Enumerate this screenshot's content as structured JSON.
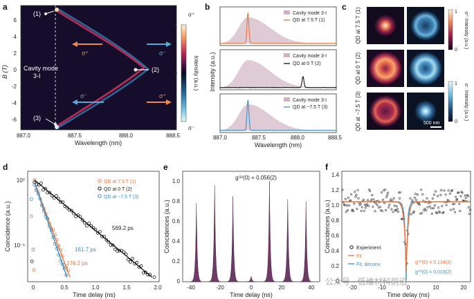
{
  "panel_labels": [
    "a",
    "b",
    "c",
    "d",
    "e",
    "f"
  ],
  "panel_a": {
    "xlabel": "Wavelength (nm)",
    "ylabel": "B (T)",
    "xticks": [
      "887.0",
      "887.5",
      "888.0",
      "888.5"
    ],
    "yticks": [
      "6",
      "4",
      "2",
      "0",
      "-2",
      "-4",
      "-6"
    ],
    "cavity_label_1": "Cavity mode",
    "cavity_label_2": "3-I",
    "points": [
      "(1)",
      "(2)",
      "(3)"
    ],
    "sigma_plus": "σ⁺",
    "sigma_minus": "σ⁻",
    "colorbar_top": "1",
    "colorbar_mid": "0",
    "colorbar_bot": "1",
    "colorbar_label": "Intensity (a.u.)",
    "colorbar_top_sym": "σ⁺",
    "colorbar_bot_sym": "σ⁻"
  },
  "panel_b": {
    "xlabel": "Wavelength (nm)",
    "ylabel": "Intensity (a.u.)",
    "xticks": [
      "887.0",
      "887.5",
      "888.0",
      "888.5"
    ],
    "legends": [
      {
        "cavity": "Cavity mode 3-I",
        "qd": "QD at 7.5 T (1)",
        "color": "#e8743b"
      },
      {
        "cavity": "Cavity mode 3-I",
        "qd": "QD at 0 T (2)",
        "color": "#111111"
      },
      {
        "cavity": "Cavity mode 3-I",
        "qd": "QD at −7.5 T (3)",
        "color": "#3a8fc4"
      }
    ]
  },
  "panel_c": {
    "row_labels": [
      "QD at 7.5 T (1)",
      "QD at 0 T (2)",
      "QD at −7.5 T (3)"
    ],
    "scalebar": "500 nm",
    "cb1_top": "1",
    "cb1_bot": "0",
    "cb1_label": "σ⁺ Intensity (a.u.)",
    "cb2_top": "1",
    "cb2_bot": "0",
    "cb2_label": "σ⁻ Intensity (a.u.)"
  },
  "panel_d": {
    "xlabel": "Time delay (ns)",
    "ylabel": "Coincidence (a.u.)",
    "xticks": [
      "0",
      "0.5",
      "1.0",
      "1.5",
      "2.0"
    ],
    "yticks": [
      "10⁰",
      "10⁻¹"
    ],
    "legend": [
      {
        "label": "QD at 7.5 T (1)",
        "color": "#e8743b"
      },
      {
        "label": "QD at 0 T (2)",
        "color": "#111111"
      },
      {
        "label": "QD at −7.5 T (3)",
        "color": "#3a8fc4"
      }
    ],
    "annotations": [
      {
        "text": "569.2 ps",
        "color": "#111111"
      },
      {
        "text": "161.7 ps",
        "color": "#3a8fc4"
      },
      {
        "text": "176.2 ps",
        "color": "#e8743b"
      }
    ]
  },
  "panel_e": {
    "xlabel": "Time delay (ns)",
    "ylabel": "Coincidences (a.u.)",
    "xticks": [
      "-40",
      "-20",
      "0",
      "20",
      "40"
    ],
    "yticks": [
      "0",
      "0.2",
      "0.4",
      "0.6",
      "0.8",
      "1.0"
    ],
    "g2_text": "g⁽²⁾(0) = 0.056(2)"
  },
  "panel_f": {
    "xlabel": "Time delay (ns)",
    "ylabel": "Coincidences (a.u.)",
    "xticks": [
      "-20",
      "-10",
      "0",
      "10",
      "20"
    ],
    "yticks": [
      "0",
      "0.2",
      "0.4",
      "0.6",
      "0.8",
      "1.0",
      "1.2",
      "1.4"
    ],
    "legend": [
      {
        "label": "Experiment",
        "color": "#111111"
      },
      {
        "label": "Fit",
        "color": "#e8743b"
      },
      {
        "label": "Fit, deconv.",
        "color": "#3a8fc4"
      }
    ],
    "g2_fit": "g⁽²⁾(0) = 0.134(3)",
    "g2_deconv": "g⁽²⁾(0) = 0.015(2)"
  },
  "watermark": "公众号 · 低维材料前沿",
  "chart_data": [
    {
      "type": "heatmap",
      "panel": "a",
      "xlabel": "Wavelength (nm)",
      "ylabel": "B (T)",
      "xlim": [
        887.0,
        888.5
      ],
      "ylim": [
        -7.5,
        7.5
      ],
      "series": [
        {
          "name": "σ⁺",
          "x": [
            887.33,
            887.55,
            887.85,
            888.05,
            888.1,
            888.05,
            887.85,
            887.55,
            887.33
          ],
          "y": [
            7.5,
            5.5,
            3.0,
            1.0,
            0.0,
            -1.0,
            -3.0,
            -5.5,
            -7.5
          ]
        },
        {
          "name": "σ⁻",
          "x": [
            887.33,
            887.6,
            887.9,
            888.1,
            888.12,
            888.1,
            887.9,
            887.6,
            887.33
          ],
          "y": [
            -7.5,
            -5.0,
            -2.5,
            -0.5,
            0.0,
            0.5,
            2.5,
            5.0,
            7.5
          ]
        }
      ]
    },
    {
      "type": "line",
      "panel": "b",
      "xlabel": "Wavelength (nm)",
      "ylabel": "Intensity (a.u.)",
      "xlim": [
        887.0,
        888.5
      ],
      "series": [
        {
          "name": "QD at 7.5 T (1)",
          "peak_x": 887.36,
          "peak_y": 1.0
        },
        {
          "name": "QD at 0 T (2)",
          "peak_x": 888.07,
          "peak_y": 0.35
        },
        {
          "name": "QD at −7.5 T (3)",
          "peak_x": 887.36,
          "peak_y": 1.0
        }
      ]
    },
    {
      "type": "scatter",
      "panel": "d",
      "xlabel": "Time delay (ns)",
      "ylabel": "Coincidence (a.u.)",
      "xlim": [
        -0.1,
        2.0
      ],
      "ylim": [
        0.01,
        1.3
      ],
      "yscale": "log",
      "series": [
        {
          "name": "QD at 7.5 T (1)",
          "tau_ps": 176.2
        },
        {
          "name": "QD at 0 T (2)",
          "tau_ps": 569.2
        },
        {
          "name": "QD at −7.5 T (3)",
          "tau_ps": 161.7
        }
      ]
    },
    {
      "type": "area",
      "panel": "e",
      "xlabel": "Time delay (ns)",
      "ylabel": "Coincidences (a.u.)",
      "xlim": [
        -45,
        45
      ],
      "ylim": [
        0,
        1.1
      ],
      "x": [
        -36,
        -24,
        -12,
        0,
        12,
        24,
        36
      ],
      "values": [
        0.78,
        0.96,
        0.85,
        0.056,
        1.0,
        0.82,
        0.8
      ]
    },
    {
      "type": "scatter",
      "panel": "f",
      "xlabel": "Time delay (ns)",
      "ylabel": "Coincidences (a.u.)",
      "xlim": [
        -25,
        25
      ],
      "ylim": [
        0,
        1.45
      ],
      "baseline": 1.05,
      "g2_fit": 0.134,
      "g2_deconv": 0.015
    }
  ]
}
